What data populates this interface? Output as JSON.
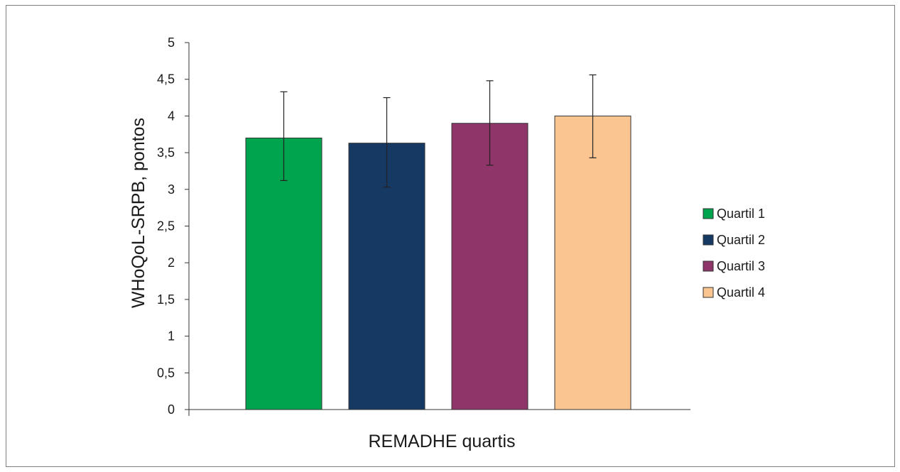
{
  "chart_data": {
    "type": "bar",
    "title": "",
    "xlabel": "REMADHE quartis",
    "ylabel": "WHoQoL-SRPB, pontos",
    "ylim": [
      0,
      5
    ],
    "ytick_step": 0.5,
    "ytick_labels": [
      "0",
      "0,5",
      "1",
      "1,5",
      "2",
      "2,5",
      "3",
      "3,5",
      "4",
      "4,5",
      "5"
    ],
    "grid": false,
    "legend_position": "right",
    "series": [
      {
        "name": "Quartil 1",
        "value": 3.7,
        "error_low": 3.12,
        "error_high": 4.33,
        "color": "#00a34e"
      },
      {
        "name": "Quartil 2",
        "value": 3.63,
        "error_low": 3.03,
        "error_high": 4.25,
        "color": "#163964"
      },
      {
        "name": "Quartil 3",
        "value": 3.9,
        "error_low": 3.33,
        "error_high": 4.48,
        "color": "#8f356a"
      },
      {
        "name": "Quartil 4",
        "value": 4.0,
        "error_low": 3.43,
        "error_high": 4.56,
        "color": "#fbc591"
      }
    ]
  }
}
